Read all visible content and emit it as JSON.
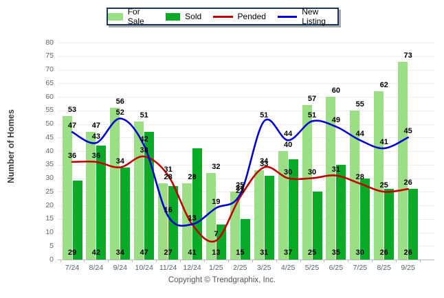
{
  "legend": {
    "items": [
      {
        "label": "For Sale",
        "type": "bar",
        "color": "#9BDE85"
      },
      {
        "label": "Sold",
        "type": "bar",
        "color": "#0AA928"
      },
      {
        "label": "Pended",
        "type": "line",
        "color": "#C00000"
      },
      {
        "label": "New Listing",
        "type": "line",
        "color": "#0000D0"
      }
    ]
  },
  "y_axis": {
    "title": "Number of Homes",
    "min": 0,
    "max": 80,
    "step": 5,
    "ticks": [
      0,
      5,
      10,
      15,
      20,
      25,
      30,
      35,
      40,
      45,
      50,
      55,
      60,
      65,
      70,
      75,
      80
    ]
  },
  "x_axis": {
    "labels": [
      "7/24",
      "8/24",
      "9/24",
      "10/24",
      "11/24",
      "12/24",
      "1/25",
      "2/25",
      "3/25",
      "4/25",
      "5/25",
      "6/25",
      "7/25",
      "8/25",
      "9/25"
    ]
  },
  "footer": {
    "copyright": "Copyright © Trendgraphix, Inc."
  },
  "chart_data": {
    "type": "bar",
    "subtype": "grouped bars with smoothed line overlays",
    "title": "",
    "xlabel": "",
    "ylabel": "Number of Homes",
    "ylim": [
      0,
      80
    ],
    "grid": true,
    "legend_position": "top",
    "categories": [
      "7/24",
      "8/24",
      "9/24",
      "10/24",
      "11/24",
      "12/24",
      "1/25",
      "2/25",
      "3/25",
      "4/25",
      "5/25",
      "6/25",
      "7/25",
      "8/25",
      "9/25"
    ],
    "series": [
      {
        "name": "For Sale",
        "type": "bar",
        "color": "#9BDE85",
        "values": [
          53,
          47,
          56,
          51,
          28,
          28,
          32,
          25,
          33,
          40,
          57,
          60,
          55,
          62,
          73
        ]
      },
      {
        "name": "Sold",
        "type": "bar",
        "color": "#0AA928",
        "values": [
          29,
          42,
          34,
          47,
          27,
          41,
          13,
          15,
          31,
          37,
          25,
          35,
          30,
          26,
          26
        ]
      },
      {
        "name": "Pended",
        "type": "line",
        "color": "#C00000",
        "values": [
          36,
          36,
          34,
          38,
          31,
          13,
          7,
          23,
          34,
          30,
          30,
          31,
          28,
          25,
          26
        ]
      },
      {
        "name": "New Listing",
        "type": "line",
        "color": "#0000D0",
        "values": [
          47,
          43,
          52,
          42,
          16,
          13,
          19,
          24,
          51,
          44,
          51,
          49,
          44,
          41,
          45
        ]
      }
    ]
  }
}
